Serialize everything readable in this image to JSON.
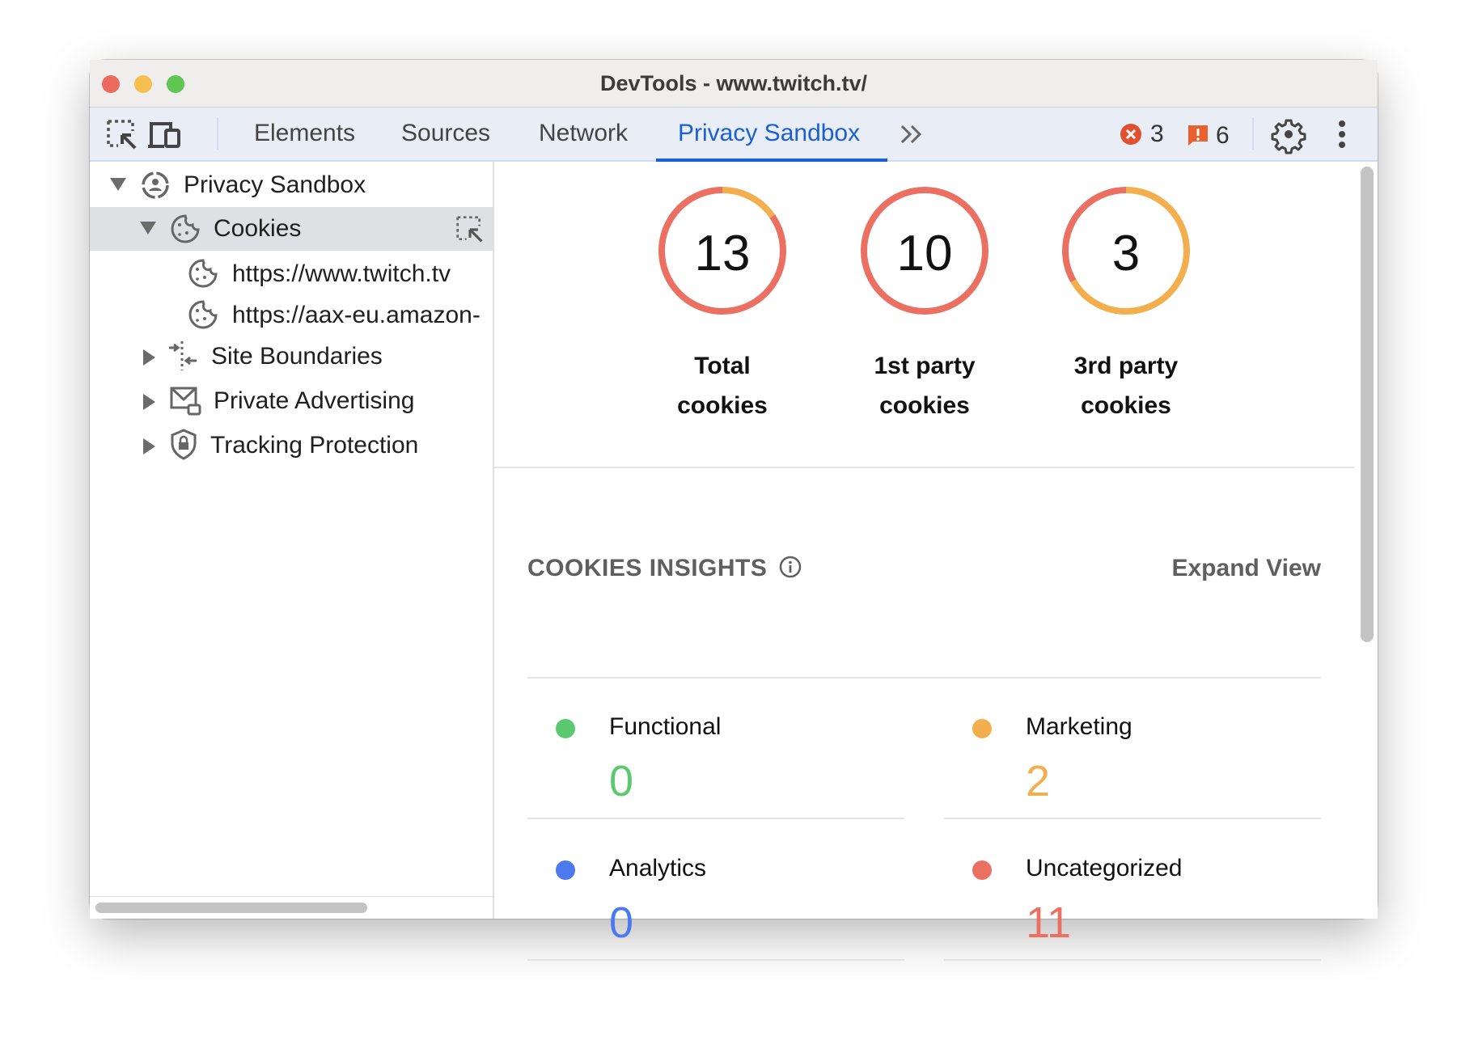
{
  "window": {
    "title": "DevTools - www.twitch.tv/"
  },
  "toolbar": {
    "tabs": [
      {
        "label": "Elements",
        "active": false
      },
      {
        "label": "Sources",
        "active": false
      },
      {
        "label": "Network",
        "active": false
      },
      {
        "label": "Privacy Sandbox",
        "active": true
      }
    ],
    "errors_count": "3",
    "warnings_count": "6",
    "accent": "#1a5fd6"
  },
  "sidebar": {
    "items": [
      {
        "label": "Privacy Sandbox",
        "icon": "privacy-sandbox-icon",
        "expanded": true
      },
      {
        "label": "Cookies",
        "icon": "cookie-icon",
        "expanded": true,
        "selected": true
      },
      {
        "label": "https://www.twitch.tv",
        "icon": "cookie-icon"
      },
      {
        "label": "https://aax-eu.amazon-",
        "icon": "cookie-icon"
      },
      {
        "label": "Site Boundaries",
        "icon": "site-boundaries-icon",
        "expanded": false
      },
      {
        "label": "Private Advertising",
        "icon": "private-advertising-icon",
        "expanded": false
      },
      {
        "label": "Tracking Protection",
        "icon": "shield-lock-icon",
        "expanded": false
      }
    ]
  },
  "summary": {
    "donuts": [
      {
        "value": "13",
        "line1": "Total",
        "line2": "cookies",
        "segments": [
          {
            "category": "Marketing",
            "count": 2
          },
          {
            "category": "Uncategorized",
            "count": 11
          }
        ]
      },
      {
        "value": "10",
        "line1": "1st party",
        "line2": "cookies",
        "segments": [
          {
            "category": "Uncategorized",
            "count": 10
          }
        ]
      },
      {
        "value": "3",
        "line1": "3rd party",
        "line2": "cookies",
        "segments": [
          {
            "category": "Marketing",
            "count": 2
          },
          {
            "category": "Uncategorized",
            "count": 1
          }
        ]
      }
    ]
  },
  "insights": {
    "title": "COOKIES INSIGHTS",
    "expand_label": "Expand View",
    "categories": [
      {
        "name": "Functional",
        "value": "0",
        "color": "#5cc971"
      },
      {
        "name": "Marketing",
        "value": "2",
        "color": "#f3ae4e"
      },
      {
        "name": "Analytics",
        "value": "0",
        "color": "#4c79f0"
      },
      {
        "name": "Uncategorized",
        "value": "11",
        "color": "#ec7061"
      }
    ]
  }
}
